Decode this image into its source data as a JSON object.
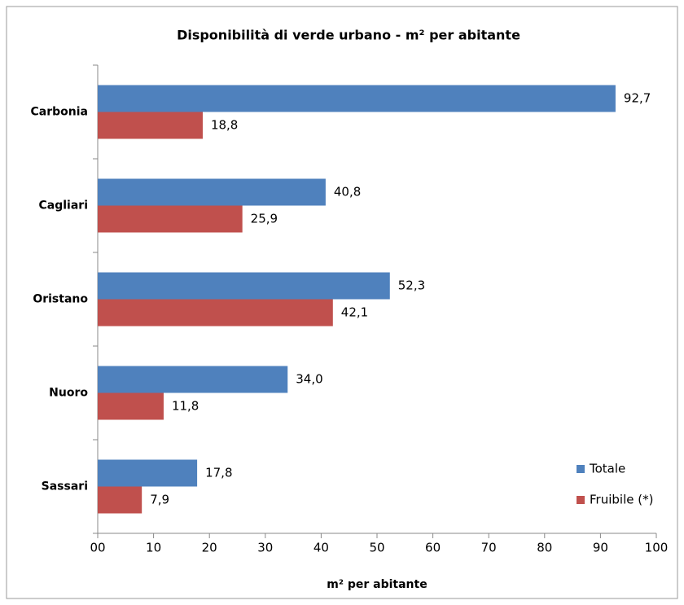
{
  "chart_data": {
    "type": "bar",
    "orientation": "horizontal",
    "title": "Disponibilità di verde urbano  - m² per abitante",
    "x_label": "m² per abitante",
    "categories": [
      "Carbonia",
      "Cagliari",
      "Oristano",
      "Nuoro",
      "Sassari"
    ],
    "series": [
      {
        "name": "Totale",
        "color": "#4f81bd",
        "values": [
          92.7,
          40.8,
          52.3,
          34.0,
          17.8
        ],
        "value_labels": [
          "92,7",
          "40,8",
          "52,3",
          "34,0",
          "17,8"
        ]
      },
      {
        "name": "Fruibile (*)",
        "color": "#c0504d",
        "values": [
          18.8,
          25.9,
          42.1,
          11.8,
          7.9
        ],
        "value_labels": [
          "18,8",
          "25,9",
          "42,1",
          "11,8",
          "7,9"
        ]
      }
    ],
    "xlim": [
      0,
      100
    ],
    "xticks": [
      {
        "value": 0,
        "label": "00"
      },
      10,
      20,
      30,
      40,
      50,
      60,
      70,
      80,
      90,
      100
    ],
    "grid": false,
    "legend": "lower right"
  }
}
